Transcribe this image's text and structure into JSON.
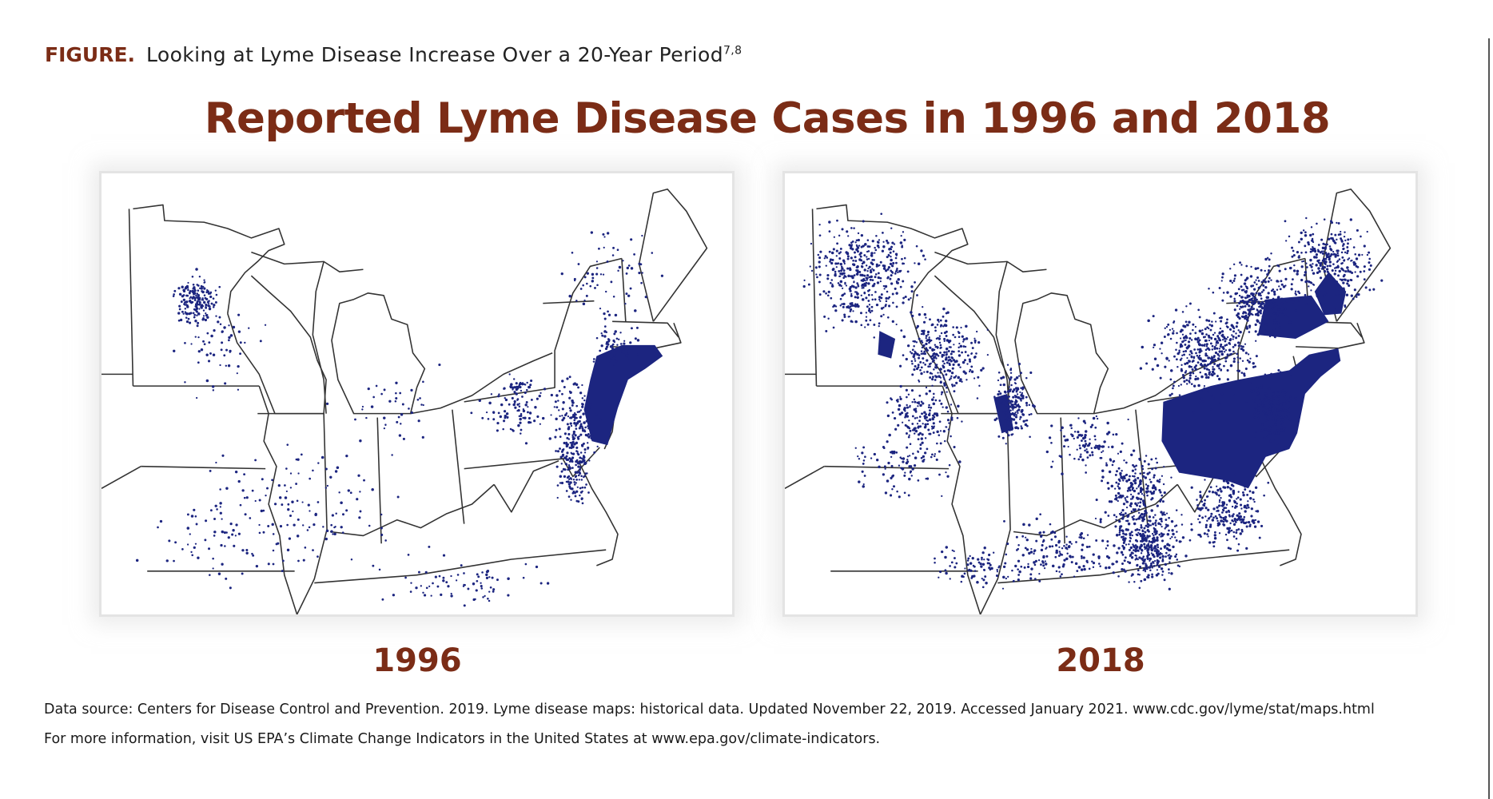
{
  "header": {
    "label": "FIGURE.",
    "caption": "Looking at Lyme Disease Increase Over a 20-Year Period",
    "superscript": "7,8"
  },
  "title": "Reported Lyme Disease Cases in 1996 and 2018",
  "maps": [
    {
      "year": "1996",
      "case_density": "low"
    },
    {
      "year": "2018",
      "case_density": "high"
    }
  ],
  "colors": {
    "accent": "#7b2c16",
    "case_dot": "#1c2580",
    "state_border": "#333333"
  },
  "footnotes": {
    "source": "Data source: Centers for Disease Control and Prevention. 2019. Lyme disease maps: historical data. Updated November 22, 2019. Accessed January 2021. www.cdc.gov/lyme/stat/maps.html",
    "more_info": "For more information, visit US EPA’s Climate Change Indicators in the United States at www.epa.gov/climate-indicators."
  }
}
